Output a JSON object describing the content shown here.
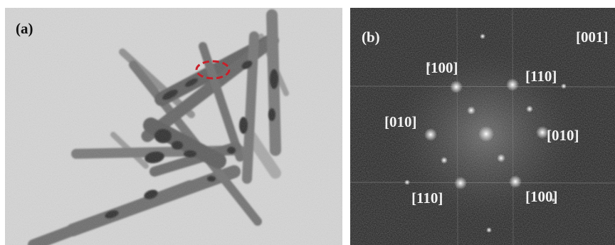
{
  "figure": {
    "panel_a": {
      "label": "(a)"
    },
    "panel_b": {
      "label": "(b)",
      "zone_axis": "[001]",
      "spots": [
        "[100]",
        "[110]",
        "[010]",
        "[010]",
        "[110]",
        "[100]"
      ]
    }
  },
  "colors": {
    "panel_a_background": "#d6d6d6",
    "panel_b_background": "#1e1e1e",
    "annotation_ring": "#c8202a"
  }
}
